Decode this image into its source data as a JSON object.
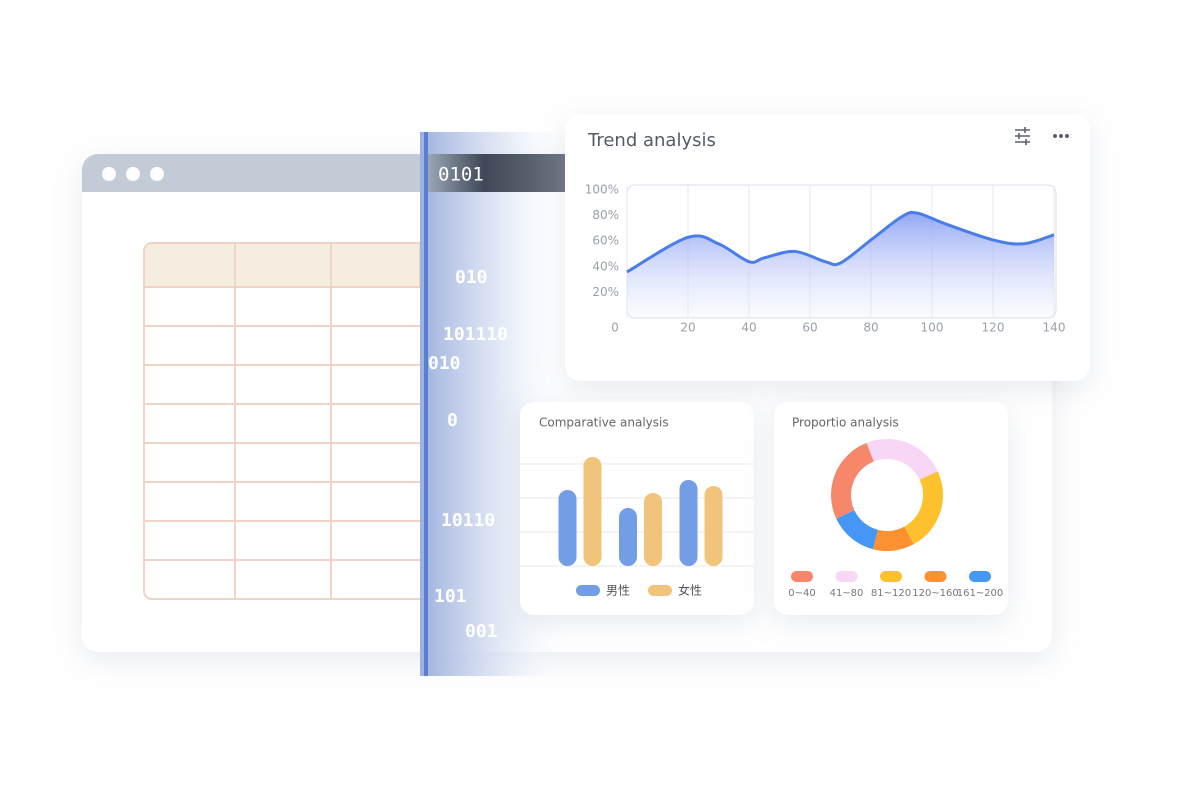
{
  "chart_data": [
    {
      "type": "line",
      "title": "Trend analysis",
      "x": [
        0,
        20,
        30,
        40,
        45,
        55,
        65,
        70,
        80,
        90,
        95,
        105,
        120,
        130,
        140
      ],
      "series": [
        {
          "color": "#4a7de8",
          "values": [
            36,
            63,
            58,
            44,
            47,
            52,
            44,
            43,
            61,
            79,
            82,
            73,
            61,
            58,
            65
          ]
        }
      ],
      "xlim": [
        0,
        140
      ],
      "xticks": [
        0,
        20,
        40,
        60,
        80,
        100,
        120,
        140
      ],
      "ylim": [
        0,
        100
      ],
      "yticks": [
        {
          "value": 20,
          "label": "20%"
        },
        {
          "value": 40,
          "label": "40%"
        },
        {
          "value": 60,
          "label": "60%"
        },
        {
          "value": 80,
          "label": "80%"
        },
        {
          "value": 100,
          "label": "100%"
        }
      ],
      "grid": true
    },
    {
      "type": "bar",
      "title": "Comparative analysis",
      "categories": [
        null,
        null,
        null
      ],
      "series": [
        {
          "name": "男性",
          "color": "#739ee6",
          "values": [
            76,
            58,
            86
          ]
        },
        {
          "name": "女性",
          "color": "#f0c47a",
          "values": [
            109,
            73,
            80
          ]
        }
      ],
      "ylim": [
        0,
        120
      ]
    },
    {
      "type": "pie",
      "title": "Proportio analysis",
      "categories": [
        "0~40",
        "41~80",
        "81~120",
        "120~160",
        "161~200"
      ],
      "values": [
        26,
        24,
        24,
        12,
        14
      ],
      "colors": [
        "#f6876b",
        "#f8d6f5",
        "#fcc12c",
        "#fb9131",
        "#4596f5"
      ]
    }
  ],
  "decorations": {
    "header_code": "0101",
    "binary": [
      "010",
      "101110",
      "010",
      "0",
      "10110",
      "101",
      "001"
    ]
  }
}
